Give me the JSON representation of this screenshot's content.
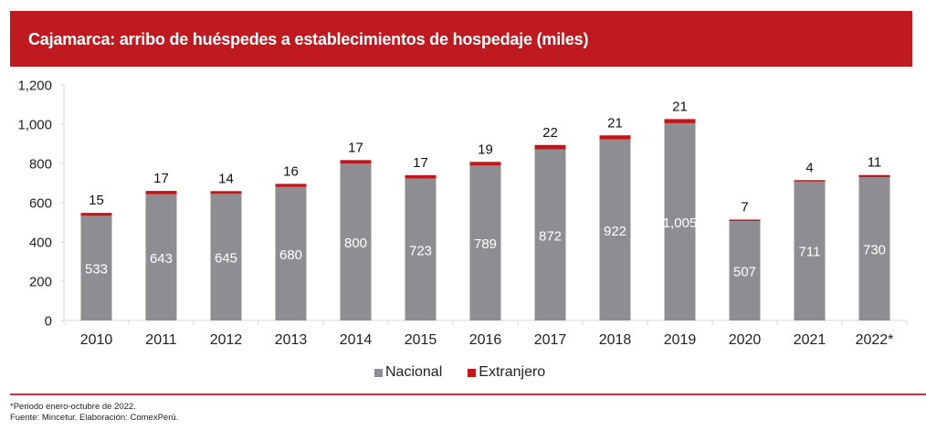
{
  "header": {
    "title": "Cajamarca: arribo de huéspedes a establecimientos de hospedaje (miles)"
  },
  "colors": {
    "banner": "#bf1a1f",
    "nacional": "#8e8d92",
    "extranjero": "#c1171c",
    "rule": "#d6323c"
  },
  "legend": {
    "items": [
      {
        "label": "Nacional",
        "color": "#8e8d92"
      },
      {
        "label": "Extranjero",
        "color": "#c1171c"
      }
    ]
  },
  "footnotes": {
    "period": "*Periodo enero-octubre de 2022.",
    "source": "Fuente: Mincetur. Elaboración: ComexPerú."
  },
  "chart_data": {
    "type": "bar",
    "stacked": true,
    "title": "Cajamarca: arribo de huéspedes a establecimientos de hospedaje (miles)",
    "xlabel": "",
    "ylabel": "",
    "ylim": [
      0,
      1200
    ],
    "yticks": [
      0,
      200,
      400,
      600,
      800,
      1000,
      1200
    ],
    "ytick_labels": [
      "0",
      "200",
      "400",
      "600",
      "800",
      "1,000",
      "1,200"
    ],
    "grid": false,
    "legend_position": "bottom",
    "categories": [
      "2010",
      "2011",
      "2012",
      "2013",
      "2014",
      "2015",
      "2016",
      "2017",
      "2018",
      "2019",
      "2020",
      "2021",
      "2022*"
    ],
    "series": [
      {
        "name": "Nacional",
        "color": "#8e8d92",
        "values": [
          533,
          643,
          645,
          680,
          800,
          723,
          789,
          872,
          922,
          1005,
          507,
          711,
          730
        ],
        "labels": [
          "533",
          "643",
          "645",
          "680",
          "800",
          "723",
          "789",
          "872",
          "922",
          "1,005",
          "507",
          "711",
          "730"
        ]
      },
      {
        "name": "Extranjero",
        "color": "#c1171c",
        "values": [
          15,
          17,
          14,
          16,
          17,
          17,
          19,
          22,
          21,
          21,
          7,
          4,
          11
        ],
        "labels": [
          "15",
          "17",
          "14",
          "16",
          "17",
          "17",
          "19",
          "22",
          "21",
          "21",
          "7",
          "4",
          "11"
        ]
      }
    ]
  }
}
